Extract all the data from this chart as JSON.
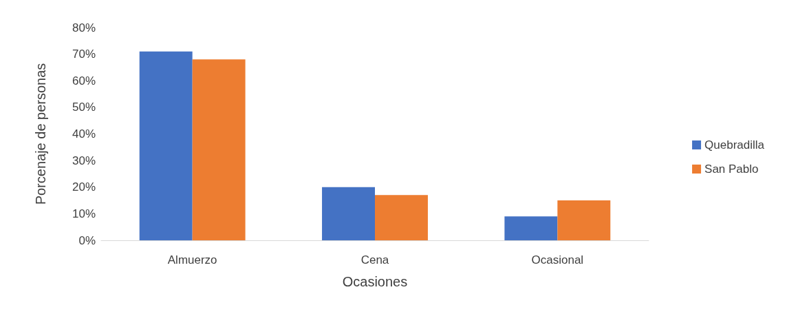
{
  "chart_data": {
    "type": "bar",
    "xlabel": "Ocasiones",
    "ylabel": "Porcenaje de personas",
    "categories": [
      "Almuerzo",
      "Cena",
      "Ocasional"
    ],
    "series": [
      {
        "name": "Quebradilla",
        "color": "#4472c4",
        "values": [
          71,
          20,
          9
        ]
      },
      {
        "name": "San Pablo",
        "color": "#ed7d31",
        "values": [
          68,
          17,
          15
        ]
      }
    ],
    "ylim": [
      0,
      80
    ],
    "yticks": [
      {
        "value": 0,
        "label": "0%"
      },
      {
        "value": 10,
        "label": "10%"
      },
      {
        "value": 20,
        "label": "20%"
      },
      {
        "value": 30,
        "label": "30%"
      },
      {
        "value": 40,
        "label": "40%"
      },
      {
        "value": 50,
        "label": "50%"
      },
      {
        "value": 60,
        "label": "60%"
      },
      {
        "value": 70,
        "label": "70%"
      },
      {
        "value": 80,
        "label": "80%"
      }
    ],
    "grid": false,
    "legend": "right"
  }
}
